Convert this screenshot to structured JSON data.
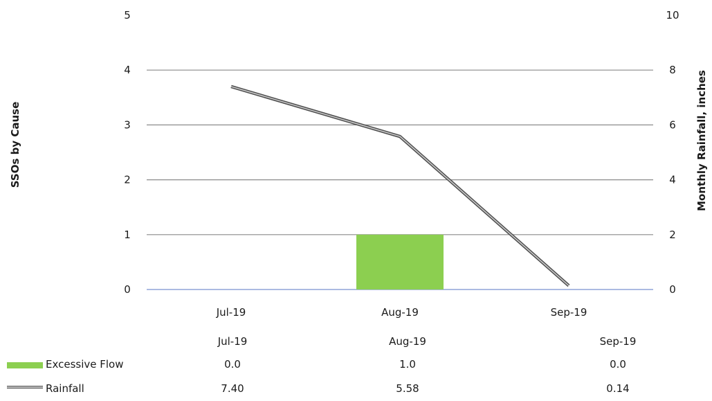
{
  "chart_data": {
    "type": "bar",
    "categories": [
      "Jul-19",
      "Aug-19",
      "Sep-19"
    ],
    "ylabel": "SSOs by Cause",
    "y2label": "Monthly Rainfall, inches",
    "ylim": [
      0,
      5
    ],
    "y2lim": [
      0,
      10
    ],
    "yticks": [
      "0",
      "1",
      "2",
      "3",
      "4",
      "5"
    ],
    "y2ticks": [
      "0",
      "2",
      "4",
      "6",
      "8",
      "10"
    ],
    "grid": true,
    "legend": "bottom-left data table",
    "series": [
      {
        "name": "Excessive Flow",
        "type": "bar",
        "axis": "left",
        "color": "#8ccf50",
        "values": [
          0.0,
          1.0,
          0.0
        ],
        "labels": [
          "0.0",
          "1.0",
          "0.0"
        ]
      },
      {
        "name": "Rainfall",
        "type": "line",
        "axis": "right",
        "color": "#6e6e6e",
        "values": [
          7.4,
          5.58,
          0.14
        ],
        "labels": [
          "7.40",
          "5.58",
          "0.14"
        ]
      }
    ]
  }
}
